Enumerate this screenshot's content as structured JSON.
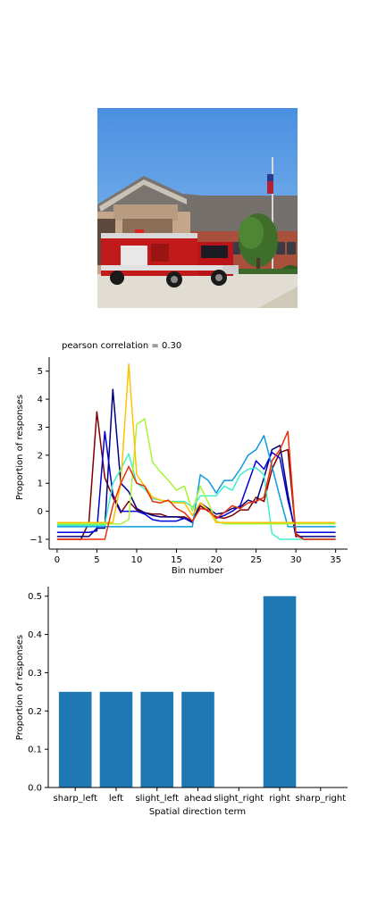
{
  "chart_data": [
    {
      "type": "line",
      "title": "pearson correlation = 0.30",
      "xlabel": "Bin number",
      "ylabel": "Proportion of responses",
      "xlim": [
        -1,
        36.5
      ],
      "ylim": [
        -1.35,
        5.5
      ],
      "xticks": [
        0,
        5,
        10,
        15,
        20,
        25,
        30,
        35
      ],
      "yticks": [
        -1,
        0,
        1,
        2,
        3,
        4,
        5
      ],
      "grid": false,
      "legend": "none",
      "series": [
        {
          "color": "#7f0000",
          "values": [
            -1,
            -1,
            -1,
            -1,
            -0.4,
            3.55,
            1.2,
            0.5,
            -0.05,
            0.35,
            0.05,
            -0.05,
            -0.1,
            -0.1,
            -0.2,
            -0.2,
            -0.2,
            -0.35,
            0.2,
            0.0,
            -0.2,
            -0.25,
            -0.15,
            0.05,
            0.05,
            0.5,
            0.35,
            1.5,
            2.1,
            2.2,
            -0.8,
            -1,
            -1,
            -1,
            -1,
            -1
          ]
        },
        {
          "color": "#00007f",
          "values": [
            -0.9,
            -0.9,
            -0.9,
            -0.9,
            -0.9,
            -0.6,
            -0.6,
            4.35,
            1.0,
            0.7,
            0.1,
            -0.05,
            -0.15,
            -0.2,
            -0.2,
            -0.2,
            -0.25,
            -0.4,
            0.3,
            0.1,
            -0.1,
            -0.05,
            0.1,
            0.15,
            0.4,
            0.3,
            1.2,
            2.2,
            2.35,
            0.6,
            -0.9,
            -0.9,
            -0.9,
            -0.9,
            -0.9,
            -0.9
          ]
        },
        {
          "color": "#0000d8",
          "values": [
            -0.75,
            -0.75,
            -0.75,
            -0.75,
            -0.75,
            -0.7,
            2.85,
            0.6,
            0.0,
            0.0,
            0.0,
            -0.1,
            -0.3,
            -0.35,
            -0.35,
            -0.35,
            -0.25,
            -0.35,
            0.1,
            0.05,
            -0.25,
            -0.15,
            0.0,
            0.2,
            1.0,
            1.8,
            1.5,
            2.1,
            1.9,
            0.4,
            -0.75,
            -0.75,
            -0.75,
            -0.75,
            -0.75,
            -0.75
          ]
        },
        {
          "color": "#0c9ae0",
          "values": [
            -0.55,
            -0.55,
            -0.55,
            -0.55,
            -0.55,
            -0.55,
            -0.55,
            -0.55,
            -0.55,
            -0.55,
            -0.55,
            -0.55,
            -0.55,
            -0.55,
            -0.55,
            -0.55,
            -0.55,
            -0.55,
            1.3,
            1.1,
            0.65,
            1.1,
            1.1,
            1.5,
            2.0,
            2.2,
            2.7,
            1.6,
            0.5,
            -0.55,
            -0.55,
            -0.55,
            -0.55,
            -0.55,
            -0.55,
            -0.55
          ]
        },
        {
          "color": "#3cf0c8",
          "values": [
            -0.5,
            -0.5,
            -0.5,
            -0.5,
            -0.5,
            -0.5,
            -0.5,
            1.0,
            1.5,
            2.05,
            1.0,
            0.8,
            0.45,
            0.4,
            0.35,
            0.35,
            0.35,
            0.15,
            0.55,
            0.55,
            0.55,
            0.9,
            0.75,
            1.3,
            1.5,
            1.55,
            1.3,
            -0.8,
            -1,
            -1,
            -1,
            -1,
            -1,
            -1,
            -1,
            -1
          ]
        },
        {
          "color": "#a5f53a",
          "values": [
            -0.45,
            -0.45,
            -0.45,
            -0.45,
            -0.45,
            -0.45,
            -0.45,
            -0.45,
            -0.45,
            -0.3,
            3.1,
            3.3,
            1.75,
            1.4,
            1.1,
            0.75,
            0.9,
            0.0,
            0.9,
            0.3,
            -0.35,
            -0.45,
            -0.45,
            -0.45,
            -0.45,
            -0.45,
            -0.45,
            -0.45,
            -0.45,
            -0.45,
            -0.45,
            -0.45,
            -0.45,
            -0.45,
            -0.45,
            -0.45
          ]
        },
        {
          "color": "#ffc000",
          "values": [
            -0.4,
            -0.4,
            -0.4,
            -0.4,
            -0.4,
            -0.4,
            -0.4,
            -0.4,
            1.0,
            5.25,
            1.3,
            0.9,
            0.5,
            0.4,
            0.35,
            0.3,
            0.3,
            -0.15,
            0.3,
            0.05,
            -0.4,
            -0.4,
            -0.4,
            -0.4,
            -0.4,
            -0.4,
            -0.4,
            -0.4,
            -0.4,
            -0.4,
            -0.4,
            -0.4,
            -0.4,
            -0.4,
            -0.4,
            -0.4
          ]
        },
        {
          "color": "#e8300a",
          "values": [
            -1,
            -1,
            -1,
            -1,
            -1,
            -1,
            -1,
            0.2,
            1.0,
            1.6,
            1.0,
            0.9,
            0.35,
            0.3,
            0.4,
            0.1,
            -0.05,
            -0.35,
            0.1,
            0.05,
            -0.25,
            -0.05,
            0.2,
            0.1,
            0.3,
            0.35,
            0.5,
            1.8,
            2.2,
            2.85,
            -0.85,
            -1,
            -1,
            -1,
            -1,
            -1
          ]
        }
      ]
    },
    {
      "type": "bar",
      "xlabel": "Spatial direction term",
      "ylabel": "Proportion of responses",
      "categories": [
        "sharp_left",
        "left",
        "slight_left",
        "ahead",
        "slight_right",
        "right",
        "sharp_right"
      ],
      "values": [
        0.25,
        0.25,
        0.25,
        0.25,
        0.0,
        0.5,
        0.0
      ],
      "ylim": [
        0,
        0.525
      ],
      "yticks": [
        "0.0",
        "0.1",
        "0.2",
        "0.3",
        "0.4",
        "0.5"
      ],
      "color": "#1f77b4",
      "grid": false,
      "legend": "none"
    }
  ]
}
